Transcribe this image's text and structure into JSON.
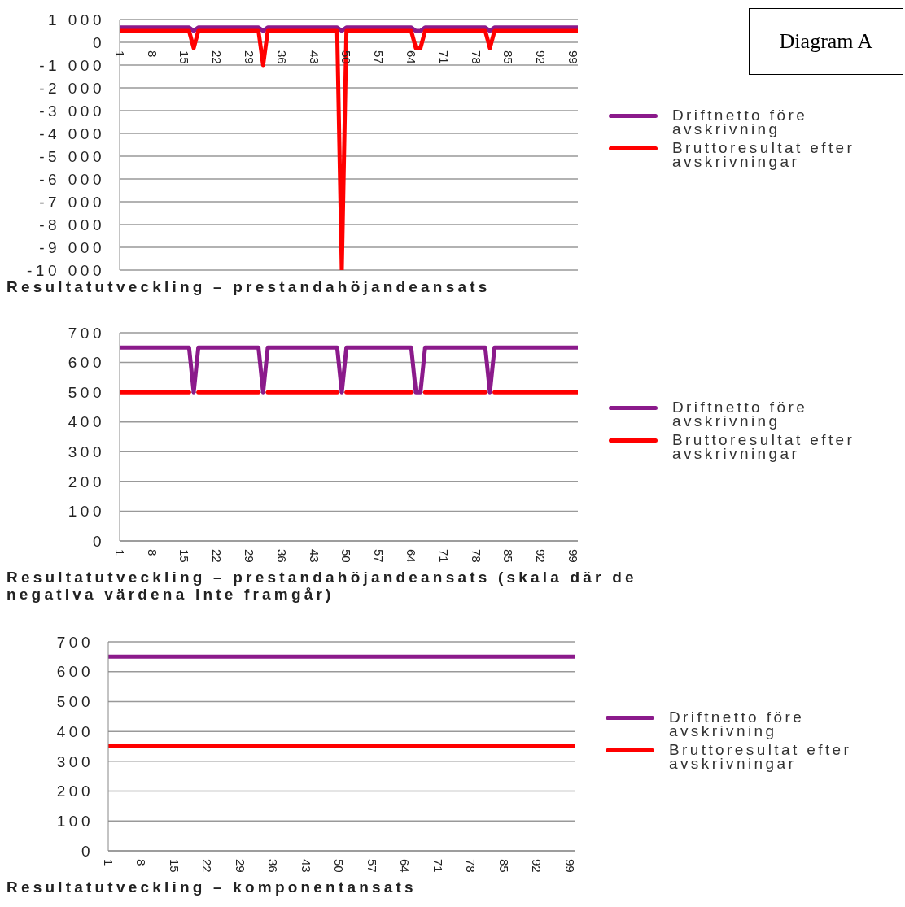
{
  "chart_data": [
    {
      "type": "line",
      "title": "Resultatutveckling – prestandahöjandeansats",
      "annotations": [
        "Diagram A"
      ],
      "x": [
        1,
        2,
        3,
        4,
        5,
        6,
        7,
        8,
        9,
        10,
        11,
        12,
        13,
        14,
        15,
        16,
        17,
        18,
        19,
        20,
        21,
        22,
        23,
        24,
        25,
        26,
        27,
        28,
        29,
        30,
        31,
        32,
        33,
        34,
        35,
        36,
        37,
        38,
        39,
        40,
        41,
        42,
        43,
        44,
        45,
        46,
        47,
        48,
        49,
        50,
        51,
        52,
        53,
        54,
        55,
        56,
        57,
        58,
        59,
        60,
        61,
        62,
        63,
        64,
        65,
        66,
        67,
        68,
        69,
        70,
        71,
        72,
        73,
        74,
        75,
        76,
        77,
        78,
        79,
        80,
        81,
        82,
        83,
        84,
        85,
        86,
        87,
        88,
        89,
        90,
        91,
        92,
        93,
        94,
        95,
        96,
        97,
        98,
        99,
        100
      ],
      "xlim": [
        1,
        100
      ],
      "xticks": [
        1,
        8,
        15,
        22,
        29,
        36,
        43,
        50,
        57,
        64,
        71,
        78,
        85,
        92,
        99
      ],
      "ylim": [
        -10000,
        1000
      ],
      "yticks": [
        {
          "value": 1000,
          "label": "1 000"
        },
        0,
        {
          "value": -1000,
          "label": "-1 000"
        },
        {
          "value": -2000,
          "label": "-2 000"
        },
        {
          "value": -3000,
          "label": "-3 000"
        },
        {
          "value": -4000,
          "label": "-4 000"
        },
        {
          "value": -5000,
          "label": "-5 000"
        },
        {
          "value": -6000,
          "label": "-6 000"
        },
        {
          "value": -7000,
          "label": "-7 000"
        },
        {
          "value": -8000,
          "label": "-8 000"
        },
        {
          "value": -9000,
          "label": "-9 000"
        },
        {
          "value": -10000,
          "label": "-10 000"
        }
      ],
      "grid": "y",
      "legend": "right",
      "series": [
        {
          "name": "Driftnetto före avskrivning",
          "color": "#8b1a8b",
          "values": [
            650,
            650,
            650,
            650,
            650,
            650,
            650,
            650,
            650,
            650,
            650,
            650,
            650,
            650,
            650,
            650,
            500,
            650,
            650,
            650,
            650,
            650,
            650,
            650,
            650,
            650,
            650,
            650,
            650,
            650,
            650,
            500,
            650,
            650,
            650,
            650,
            650,
            650,
            650,
            650,
            650,
            650,
            650,
            650,
            650,
            650,
            650,
            650,
            500,
            650,
            650,
            650,
            650,
            650,
            650,
            650,
            650,
            650,
            650,
            650,
            650,
            650,
            650,
            650,
            500,
            500,
            650,
            650,
            650,
            650,
            650,
            650,
            650,
            650,
            650,
            650,
            650,
            650,
            650,
            650,
            500,
            650,
            650,
            650,
            650,
            650,
            650,
            650,
            650,
            650,
            650,
            650,
            650,
            650,
            650,
            650,
            650,
            650,
            650,
            650
          ]
        },
        {
          "name": "Bruttoresultat efter avskrivningar",
          "color": "#ff0000",
          "values": [
            500,
            500,
            500,
            500,
            500,
            500,
            500,
            500,
            500,
            500,
            500,
            500,
            500,
            500,
            500,
            500,
            -250,
            500,
            500,
            500,
            500,
            500,
            500,
            500,
            500,
            500,
            500,
            500,
            500,
            500,
            500,
            -1000,
            500,
            500,
            500,
            500,
            500,
            500,
            500,
            500,
            500,
            500,
            500,
            500,
            500,
            500,
            500,
            500,
            -10000,
            500,
            500,
            500,
            500,
            500,
            500,
            500,
            500,
            500,
            500,
            500,
            500,
            500,
            500,
            500,
            -250,
            -250,
            500,
            500,
            500,
            500,
            500,
            500,
            500,
            500,
            500,
            500,
            500,
            500,
            500,
            500,
            -250,
            500,
            500,
            500,
            500,
            500,
            500,
            500,
            500,
            500,
            500,
            500,
            500,
            500,
            500,
            500,
            500,
            500,
            500,
            500
          ]
        }
      ]
    },
    {
      "type": "line",
      "title": "Resultatutveckling – prestandahöjandeansats  (skala där de negativa värdena inte framgår)",
      "x": [
        1,
        2,
        3,
        4,
        5,
        6,
        7,
        8,
        9,
        10,
        11,
        12,
        13,
        14,
        15,
        16,
        17,
        18,
        19,
        20,
        21,
        22,
        23,
        24,
        25,
        26,
        27,
        28,
        29,
        30,
        31,
        32,
        33,
        34,
        35,
        36,
        37,
        38,
        39,
        40,
        41,
        42,
        43,
        44,
        45,
        46,
        47,
        48,
        49,
        50,
        51,
        52,
        53,
        54,
        55,
        56,
        57,
        58,
        59,
        60,
        61,
        62,
        63,
        64,
        65,
        66,
        67,
        68,
        69,
        70,
        71,
        72,
        73,
        74,
        75,
        76,
        77,
        78,
        79,
        80,
        81,
        82,
        83,
        84,
        85,
        86,
        87,
        88,
        89,
        90,
        91,
        92,
        93,
        94,
        95,
        96,
        97,
        98,
        99,
        100
      ],
      "xlim": [
        1,
        100
      ],
      "xticks": [
        1,
        8,
        15,
        22,
        29,
        36,
        43,
        50,
        57,
        64,
        71,
        78,
        85,
        92,
        99
      ],
      "ylim": [
        0,
        700
      ],
      "yticks": [
        0,
        100,
        200,
        300,
        400,
        500,
        600,
        700
      ],
      "grid": "y",
      "legend": "right",
      "series": [
        {
          "name": "Driftnetto före avskrivning",
          "color": "#8b1a8b",
          "values": [
            650,
            650,
            650,
            650,
            650,
            650,
            650,
            650,
            650,
            650,
            650,
            650,
            650,
            650,
            650,
            650,
            500,
            650,
            650,
            650,
            650,
            650,
            650,
            650,
            650,
            650,
            650,
            650,
            650,
            650,
            650,
            500,
            650,
            650,
            650,
            650,
            650,
            650,
            650,
            650,
            650,
            650,
            650,
            650,
            650,
            650,
            650,
            650,
            500,
            650,
            650,
            650,
            650,
            650,
            650,
            650,
            650,
            650,
            650,
            650,
            650,
            650,
            650,
            650,
            500,
            500,
            650,
            650,
            650,
            650,
            650,
            650,
            650,
            650,
            650,
            650,
            650,
            650,
            650,
            650,
            500,
            650,
            650,
            650,
            650,
            650,
            650,
            650,
            650,
            650,
            650,
            650,
            650,
            650,
            650,
            650,
            650,
            650,
            650,
            650
          ]
        },
        {
          "name": "Bruttoresultat efter avskrivningar",
          "color": "#ff0000",
          "values": [
            500,
            500,
            500,
            500,
            500,
            500,
            500,
            500,
            500,
            500,
            500,
            500,
            500,
            500,
            500,
            500,
            null,
            500,
            500,
            500,
            500,
            500,
            500,
            500,
            500,
            500,
            500,
            500,
            500,
            500,
            500,
            null,
            500,
            500,
            500,
            500,
            500,
            500,
            500,
            500,
            500,
            500,
            500,
            500,
            500,
            500,
            500,
            500,
            null,
            500,
            500,
            500,
            500,
            500,
            500,
            500,
            500,
            500,
            500,
            500,
            500,
            500,
            500,
            500,
            null,
            null,
            500,
            500,
            500,
            500,
            500,
            500,
            500,
            500,
            500,
            500,
            500,
            500,
            500,
            500,
            null,
            500,
            500,
            500,
            500,
            500,
            500,
            500,
            500,
            500,
            500,
            500,
            500,
            500,
            500,
            500,
            500,
            500,
            500,
            500
          ]
        }
      ]
    },
    {
      "type": "line",
      "title": "Resultatutveckling – komponentansats",
      "x": [
        1,
        2,
        3,
        4,
        5,
        6,
        7,
        8,
        9,
        10,
        11,
        12,
        13,
        14,
        15,
        16,
        17,
        18,
        19,
        20,
        21,
        22,
        23,
        24,
        25,
        26,
        27,
        28,
        29,
        30,
        31,
        32,
        33,
        34,
        35,
        36,
        37,
        38,
        39,
        40,
        41,
        42,
        43,
        44,
        45,
        46,
        47,
        48,
        49,
        50,
        51,
        52,
        53,
        54,
        55,
        56,
        57,
        58,
        59,
        60,
        61,
        62,
        63,
        64,
        65,
        66,
        67,
        68,
        69,
        70,
        71,
        72,
        73,
        74,
        75,
        76,
        77,
        78,
        79,
        80,
        81,
        82,
        83,
        84,
        85,
        86,
        87,
        88,
        89,
        90,
        91,
        92,
        93,
        94,
        95,
        96,
        97,
        98,
        99,
        100
      ],
      "xlim": [
        1,
        100
      ],
      "xticks": [
        1,
        8,
        15,
        22,
        29,
        36,
        43,
        50,
        57,
        64,
        71,
        78,
        85,
        92,
        99
      ],
      "ylim": [
        0,
        700
      ],
      "yticks": [
        0,
        100,
        200,
        300,
        400,
        500,
        600,
        700
      ],
      "grid": "y",
      "legend": "right",
      "series": [
        {
          "name": "Driftnetto före avskrivning",
          "color": "#8b1a8b",
          "values": [
            650,
            650,
            650,
            650,
            650,
            650,
            650,
            650,
            650,
            650,
            650,
            650,
            650,
            650,
            650,
            650,
            650,
            650,
            650,
            650,
            650,
            650,
            650,
            650,
            650,
            650,
            650,
            650,
            650,
            650,
            650,
            650,
            650,
            650,
            650,
            650,
            650,
            650,
            650,
            650,
            650,
            650,
            650,
            650,
            650,
            650,
            650,
            650,
            650,
            650,
            650,
            650,
            650,
            650,
            650,
            650,
            650,
            650,
            650,
            650,
            650,
            650,
            650,
            650,
            650,
            650,
            650,
            650,
            650,
            650,
            650,
            650,
            650,
            650,
            650,
            650,
            650,
            650,
            650,
            650,
            650,
            650,
            650,
            650,
            650,
            650,
            650,
            650,
            650,
            650,
            650,
            650,
            650,
            650,
            650,
            650,
            650,
            650,
            650,
            650
          ]
        },
        {
          "name": "Bruttoresultat efter avskrivningar",
          "color": "#ff0000",
          "values": [
            350,
            350,
            350,
            350,
            350,
            350,
            350,
            350,
            350,
            350,
            350,
            350,
            350,
            350,
            350,
            350,
            350,
            350,
            350,
            350,
            350,
            350,
            350,
            350,
            350,
            350,
            350,
            350,
            350,
            350,
            350,
            350,
            350,
            350,
            350,
            350,
            350,
            350,
            350,
            350,
            350,
            350,
            350,
            350,
            350,
            350,
            350,
            350,
            350,
            350,
            350,
            350,
            350,
            350,
            350,
            350,
            350,
            350,
            350,
            350,
            350,
            350,
            350,
            350,
            350,
            350,
            350,
            350,
            350,
            350,
            350,
            350,
            350,
            350,
            350,
            350,
            350,
            350,
            350,
            350,
            350,
            350,
            350,
            350,
            350,
            350,
            350,
            350,
            350,
            350,
            350,
            350,
            350,
            350,
            350,
            350,
            350,
            350,
            350,
            350
          ]
        }
      ]
    }
  ]
}
